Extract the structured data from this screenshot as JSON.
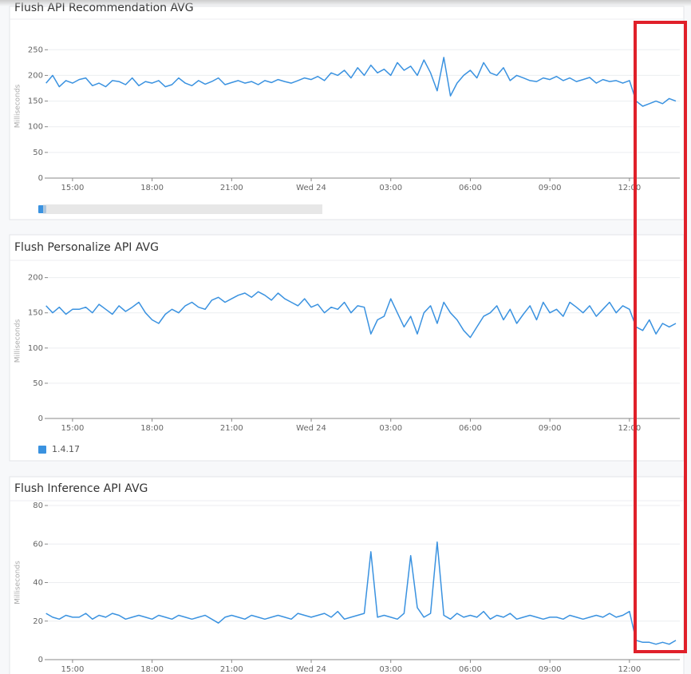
{
  "chart_data": [
    {
      "type": "line",
      "title": "Flush API Recommendation AVG",
      "y_label": "Milliseconds",
      "x": [
        14,
        14.25,
        14.5,
        14.75,
        15,
        15.25,
        15.5,
        15.75,
        16,
        16.25,
        16.5,
        16.75,
        17,
        17.25,
        17.5,
        17.75,
        18,
        18.25,
        18.5,
        18.75,
        19,
        19.25,
        19.5,
        19.75,
        20,
        20.25,
        20.5,
        20.75,
        21,
        21.25,
        21.5,
        21.75,
        22,
        22.25,
        22.5,
        22.75,
        23,
        23.25,
        23.5,
        23.75,
        24,
        24.25,
        24.5,
        24.75,
        25,
        25.25,
        25.5,
        25.75,
        26,
        26.25,
        26.5,
        26.75,
        27,
        27.25,
        27.5,
        27.75,
        28,
        28.25,
        28.5,
        28.75,
        29,
        29.25,
        29.5,
        29.75,
        30,
        30.25,
        30.5,
        30.75,
        31,
        31.25,
        31.5,
        31.75,
        32,
        32.25,
        32.5,
        32.75,
        33,
        33.25,
        33.5,
        33.75,
        34,
        34.25,
        34.5,
        34.75,
        35,
        35.25,
        35.5,
        35.75,
        36,
        36.25,
        36.5,
        36.75,
        37,
        37.25,
        37.5,
        37.75
      ],
      "series": [
        {
          "color": "#3a92e0",
          "values": [
            185,
            200,
            178,
            190,
            185,
            192,
            195,
            180,
            185,
            178,
            190,
            188,
            182,
            195,
            180,
            188,
            185,
            190,
            178,
            182,
            195,
            185,
            180,
            190,
            183,
            188,
            195,
            182,
            186,
            190,
            185,
            188,
            182,
            190,
            186,
            192,
            188,
            185,
            190,
            195,
            192,
            198,
            190,
            205,
            200,
            210,
            195,
            215,
            200,
            220,
            205,
            212,
            200,
            225,
            210,
            218,
            200,
            230,
            205,
            170,
            235,
            160,
            185,
            200,
            210,
            195,
            225,
            205,
            200,
            215,
            190,
            200,
            195,
            190,
            188,
            195,
            192,
            198,
            190,
            195,
            188,
            192,
            196,
            185,
            192,
            188,
            190,
            185,
            190,
            150,
            140,
            145,
            150,
            145,
            155,
            150
          ]
        }
      ],
      "xlim": [
        14.07,
        37.9
      ],
      "xticks": [
        {
          "value": 15,
          "label": "15:00"
        },
        {
          "value": 18,
          "label": "18:00"
        },
        {
          "value": 21,
          "label": "21:00"
        },
        {
          "value": 24,
          "label": "Wed 24"
        },
        {
          "value": 27,
          "label": "03:00"
        },
        {
          "value": 30,
          "label": "06:00"
        },
        {
          "value": 33,
          "label": "09:00"
        },
        {
          "value": 36,
          "label": "12:00"
        }
      ],
      "ylim": [
        0,
        280
      ],
      "yticks": [
        0,
        50,
        100,
        150,
        200,
        250
      ],
      "grid": true
    },
    {
      "type": "line",
      "title": "Flush Personalize API AVG",
      "y_label": "Milliseconds",
      "x": [
        14,
        14.25,
        14.5,
        14.75,
        15,
        15.25,
        15.5,
        15.75,
        16,
        16.25,
        16.5,
        16.75,
        17,
        17.25,
        17.5,
        17.75,
        18,
        18.25,
        18.5,
        18.75,
        19,
        19.25,
        19.5,
        19.75,
        20,
        20.25,
        20.5,
        20.75,
        21,
        21.25,
        21.5,
        21.75,
        22,
        22.25,
        22.5,
        22.75,
        23,
        23.25,
        23.5,
        23.75,
        24,
        24.25,
        24.5,
        24.75,
        25,
        25.25,
        25.5,
        25.75,
        26,
        26.25,
        26.5,
        26.75,
        27,
        27.25,
        27.5,
        27.75,
        28,
        28.25,
        28.5,
        28.75,
        29,
        29.25,
        29.5,
        29.75,
        30,
        30.25,
        30.5,
        30.75,
        31,
        31.25,
        31.5,
        31.75,
        32,
        32.25,
        32.5,
        32.75,
        33,
        33.25,
        33.5,
        33.75,
        34,
        34.25,
        34.5,
        34.75,
        35,
        35.25,
        35.5,
        35.75,
        36,
        36.25,
        36.5,
        36.75,
        37,
        37.25,
        37.5,
        37.75
      ],
      "series": [
        {
          "name": "1.4.17",
          "color": "#3a92e0",
          "values": [
            160,
            150,
            158,
            148,
            155,
            155,
            158,
            150,
            162,
            155,
            148,
            160,
            152,
            158,
            165,
            150,
            140,
            135,
            148,
            155,
            150,
            160,
            165,
            158,
            155,
            168,
            172,
            165,
            170,
            175,
            178,
            172,
            180,
            175,
            168,
            178,
            170,
            165,
            160,
            170,
            158,
            162,
            150,
            158,
            155,
            165,
            150,
            160,
            158,
            120,
            140,
            145,
            170,
            150,
            130,
            145,
            120,
            150,
            160,
            135,
            165,
            150,
            140,
            125,
            115,
            130,
            145,
            150,
            160,
            140,
            155,
            135,
            148,
            160,
            140,
            165,
            150,
            155,
            145,
            165,
            158,
            150,
            160,
            145,
            155,
            165,
            150,
            160,
            155,
            130,
            125,
            140,
            120,
            135,
            130,
            135
          ]
        }
      ],
      "xlim": [
        14.07,
        37.9
      ],
      "xticks": [
        {
          "value": 15,
          "label": "15:00"
        },
        {
          "value": 18,
          "label": "18:00"
        },
        {
          "value": 21,
          "label": "21:00"
        },
        {
          "value": 24,
          "label": "Wed 24"
        },
        {
          "value": 27,
          "label": "03:00"
        },
        {
          "value": 30,
          "label": "06:00"
        },
        {
          "value": 33,
          "label": "09:00"
        },
        {
          "value": 36,
          "label": "12:00"
        }
      ],
      "ylim": [
        0,
        220
      ],
      "yticks": [
        0,
        50,
        100,
        150,
        200
      ],
      "grid": true
    },
    {
      "type": "line",
      "title": "Flush Inference API AVG",
      "y_label": "Milliseconds",
      "x": [
        14,
        14.25,
        14.5,
        14.75,
        15,
        15.25,
        15.5,
        15.75,
        16,
        16.25,
        16.5,
        16.75,
        17,
        17.25,
        17.5,
        17.75,
        18,
        18.25,
        18.5,
        18.75,
        19,
        19.25,
        19.5,
        19.75,
        20,
        20.25,
        20.5,
        20.75,
        21,
        21.25,
        21.5,
        21.75,
        22,
        22.25,
        22.5,
        22.75,
        23,
        23.25,
        23.5,
        23.75,
        24,
        24.25,
        24.5,
        24.75,
        25,
        25.25,
        25.5,
        25.75,
        26,
        26.25,
        26.5,
        26.75,
        27,
        27.25,
        27.5,
        27.75,
        28,
        28.25,
        28.5,
        28.75,
        29,
        29.25,
        29.5,
        29.75,
        30,
        30.25,
        30.5,
        30.75,
        31,
        31.25,
        31.5,
        31.75,
        32,
        32.25,
        32.5,
        32.75,
        33,
        33.25,
        33.5,
        33.75,
        34,
        34.25,
        34.5,
        34.75,
        35,
        35.25,
        35.5,
        35.75,
        36,
        36.25,
        36.5,
        36.75,
        37,
        37.25,
        37.5,
        37.75
      ],
      "series": [
        {
          "color": "#3a92e0",
          "values": [
            24,
            22,
            21,
            23,
            22,
            22,
            24,
            21,
            23,
            22,
            24,
            23,
            21,
            22,
            23,
            22,
            21,
            23,
            22,
            21,
            23,
            22,
            21,
            22,
            23,
            21,
            19,
            22,
            23,
            22,
            21,
            23,
            22,
            21,
            22,
            23,
            22,
            21,
            24,
            23,
            22,
            23,
            24,
            22,
            25,
            21,
            22,
            23,
            24,
            56,
            22,
            23,
            22,
            21,
            24,
            54,
            27,
            22,
            24,
            61,
            23,
            21,
            24,
            22,
            23,
            22,
            25,
            21,
            23,
            22,
            24,
            21,
            22,
            23,
            22,
            21,
            22,
            22,
            21,
            23,
            22,
            21,
            22,
            23,
            22,
            24,
            22,
            23,
            25,
            10,
            9,
            9,
            8,
            9,
            8,
            10
          ]
        }
      ],
      "xlim": [
        14.07,
        37.9
      ],
      "xticks": [
        {
          "value": 15,
          "label": "15:00"
        },
        {
          "value": 18,
          "label": "18:00"
        },
        {
          "value": 21,
          "label": "21:00"
        },
        {
          "value": 24,
          "label": "Wed 24"
        },
        {
          "value": 27,
          "label": "03:00"
        },
        {
          "value": 30,
          "label": "06:00"
        },
        {
          "value": 33,
          "label": "09:00"
        },
        {
          "value": 36,
          "label": "12:00"
        }
      ],
      "ylim": [
        0,
        80
      ],
      "yticks": [
        0,
        20,
        40,
        60,
        80
      ],
      "grid": true
    }
  ]
}
